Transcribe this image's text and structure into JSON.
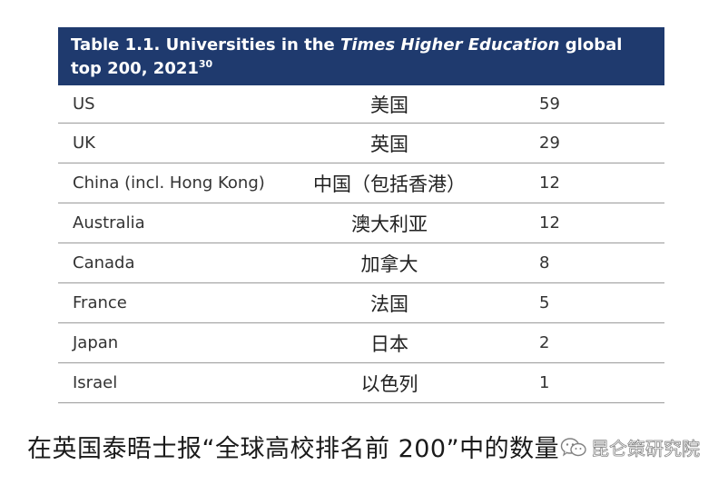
{
  "table": {
    "title_line1_prefix": "Table 1.1. Universities in the ",
    "title_line1_italic": "Times Higher Education",
    "title_line1_suffix": " global",
    "title_line2": "top 200, 2021",
    "title_superscript": "30",
    "header_bg_color": "#1f3a6e",
    "rows": [
      {
        "country_en": "US",
        "country_zh": "美国",
        "count": "59"
      },
      {
        "country_en": "UK",
        "country_zh": "英国",
        "count": "29"
      },
      {
        "country_en": "China (incl. Hong Kong)",
        "country_zh": "中国（包括香港）",
        "count": "12"
      },
      {
        "country_en": "Australia",
        "country_zh": "澳大利亚",
        "count": "12"
      },
      {
        "country_en": "Canada",
        "country_zh": "加拿大",
        "count": "8"
      },
      {
        "country_en": "France",
        "country_zh": "法国",
        "count": "5"
      },
      {
        "country_en": "Japan",
        "country_zh": "日本",
        "count": "2"
      },
      {
        "country_en": "Israel",
        "country_zh": "以色列",
        "count": "1"
      }
    ]
  },
  "caption": "在英国泰晤士报“全球高校排名前 200”中的数量",
  "watermark": {
    "text": "昆仑策研究院",
    "icon": "wechat-icon"
  }
}
